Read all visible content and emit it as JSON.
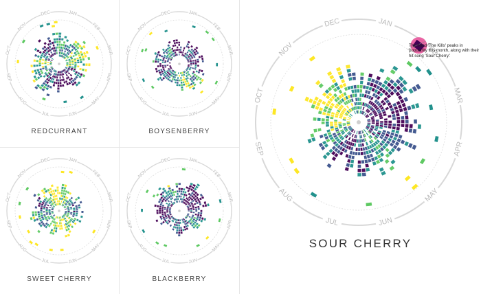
{
  "months": [
    "JAN",
    "FEB",
    "MAR",
    "APR",
    "MAY",
    "JUN",
    "JUL",
    "AUG",
    "SEP",
    "OCT",
    "NOV",
    "DEC"
  ],
  "palette": [
    "#440154",
    "#3b528b",
    "#21918c",
    "#5ec962",
    "#fde725"
  ],
  "accent": "#e8559b",
  "chart_data": [
    {
      "type": "radial-heatmap",
      "title": "REDCURRANT",
      "density_by_month": [
        0.55,
        0.85,
        0.75,
        0.6,
        0.5,
        0.6,
        0.8,
        0.7,
        0.55,
        0.6,
        0.7,
        0.8
      ],
      "dominant_shade_by_month": [
        2,
        3,
        3,
        1,
        0,
        0,
        1,
        2,
        3,
        1,
        0,
        2
      ]
    },
    {
      "type": "radial-heatmap",
      "title": "BOYSENBERRY",
      "density_by_month": [
        0.5,
        0.55,
        0.7,
        0.75,
        0.6,
        0.55,
        0.6,
        0.65,
        0.55,
        0.5,
        0.45,
        0.6
      ],
      "dominant_shade_by_month": [
        0,
        1,
        2,
        3,
        2,
        1,
        0,
        1,
        2,
        0,
        0,
        1
      ]
    },
    {
      "type": "radial-heatmap",
      "title": "SWEET CHERRY",
      "density_by_month": [
        0.55,
        0.6,
        0.6,
        0.7,
        0.75,
        0.8,
        0.7,
        0.55,
        0.5,
        0.45,
        0.5,
        0.6
      ],
      "dominant_shade_by_month": [
        3,
        4,
        3,
        2,
        2,
        1,
        3,
        4,
        3,
        2,
        1,
        2
      ]
    },
    {
      "type": "radial-heatmap",
      "title": "BLACKBERRY",
      "density_by_month": [
        0.45,
        0.4,
        0.45,
        0.55,
        0.65,
        0.75,
        0.8,
        0.8,
        0.75,
        0.6,
        0.5,
        0.45
      ],
      "dominant_shade_by_month": [
        1,
        1,
        0,
        0,
        1,
        2,
        1,
        0,
        0,
        1,
        2,
        1
      ]
    },
    {
      "type": "radial-heatmap",
      "title": "SOUR CHERRY",
      "density_by_month": [
        0.55,
        0.7,
        0.75,
        0.7,
        0.8,
        0.9,
        0.85,
        0.75,
        0.7,
        0.65,
        0.6,
        0.6
      ],
      "dominant_shade_by_month": [
        3,
        4,
        3,
        2,
        1,
        0,
        0,
        1,
        2,
        1,
        0,
        2
      ],
      "highlight": {
        "month": "FEB",
        "text": "The band 'The Kills' peaks in popularity this month, along with their hit song 'Sour Cherry.'"
      }
    }
  ]
}
